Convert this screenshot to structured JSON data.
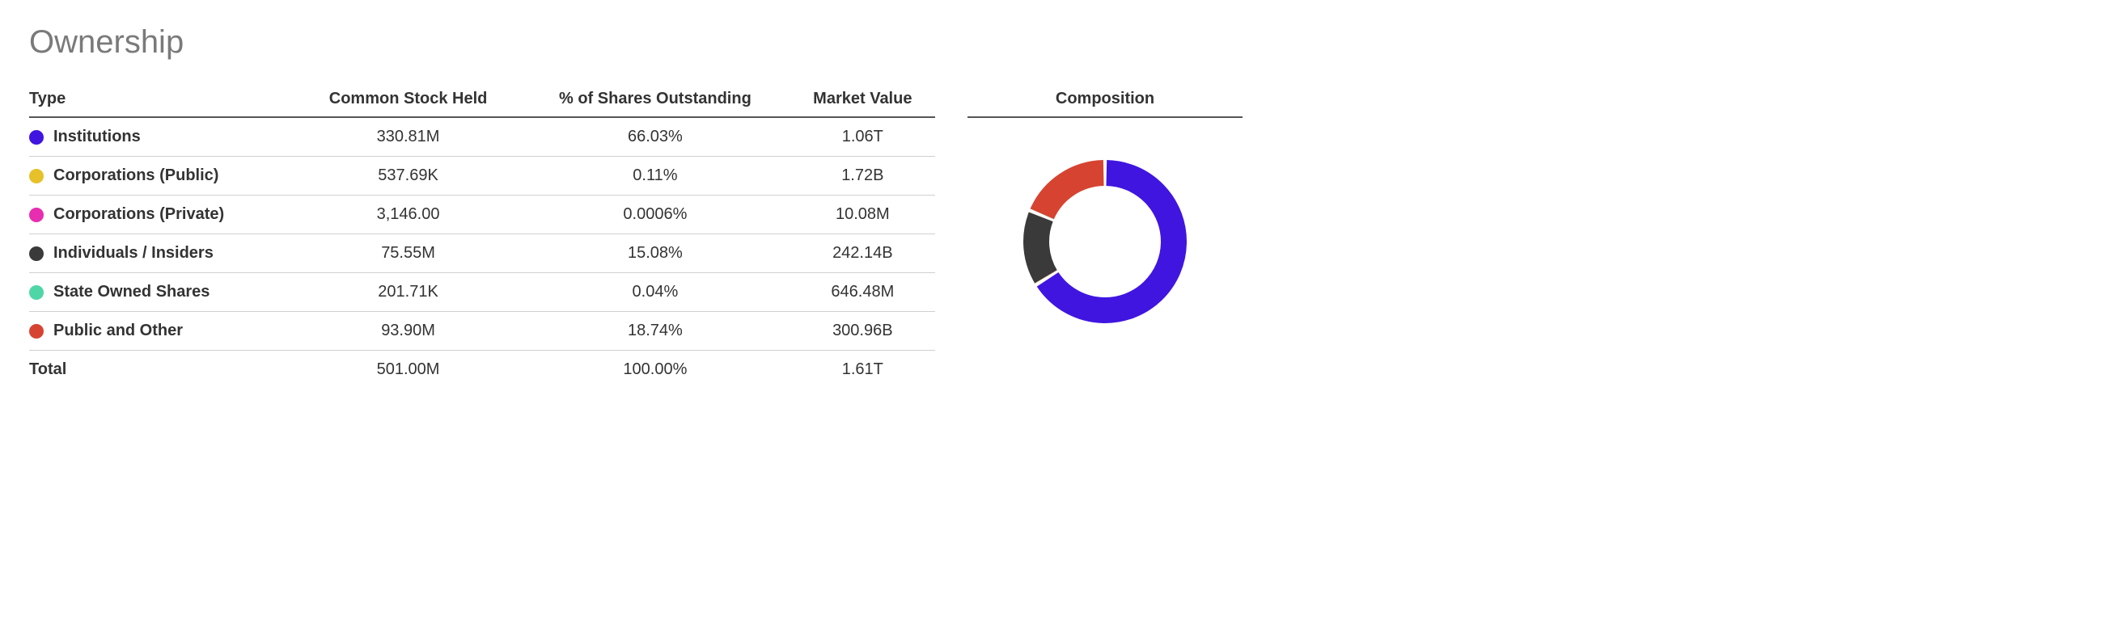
{
  "title": "Ownership",
  "columns": {
    "type": "Type",
    "held": "Common Stock Held",
    "pct": "% of Shares Outstanding",
    "mv": "Market Value",
    "comp": "Composition"
  },
  "rows": [
    {
      "label": "Institutions",
      "held": "330.81M",
      "pct": "66.03%",
      "mv": "1.06T",
      "pct_num": 66.03,
      "color": "#4015e0"
    },
    {
      "label": "Corporations (Public)",
      "held": "537.69K",
      "pct": "0.11%",
      "mv": "1.72B",
      "pct_num": 0.11,
      "color": "#e6c12a"
    },
    {
      "label": "Corporations (Private)",
      "held": "3,146.00",
      "pct": "0.0006%",
      "mv": "10.08M",
      "pct_num": 0.0006,
      "color": "#e82db0"
    },
    {
      "label": "Individuals / Insiders",
      "held": "75.55M",
      "pct": "15.08%",
      "mv": "242.14B",
      "pct_num": 15.08,
      "color": "#3a3a3a"
    },
    {
      "label": "State Owned Shares",
      "held": "201.71K",
      "pct": "0.04%",
      "mv": "646.48M",
      "pct_num": 0.04,
      "color": "#4fd6a6"
    },
    {
      "label": "Public and Other",
      "held": "93.90M",
      "pct": "18.74%",
      "mv": "300.96B",
      "pct_num": 18.74,
      "color": "#d64431"
    }
  ],
  "total": {
    "label": "Total",
    "held": "501.00M",
    "pct": "100.00%",
    "mv": "1.61T"
  },
  "donut": {
    "size": 230,
    "radius": 85,
    "stroke_width": 32,
    "gap_deg": 2.5,
    "start_angle_deg": -90,
    "background": "#ffffff"
  }
}
